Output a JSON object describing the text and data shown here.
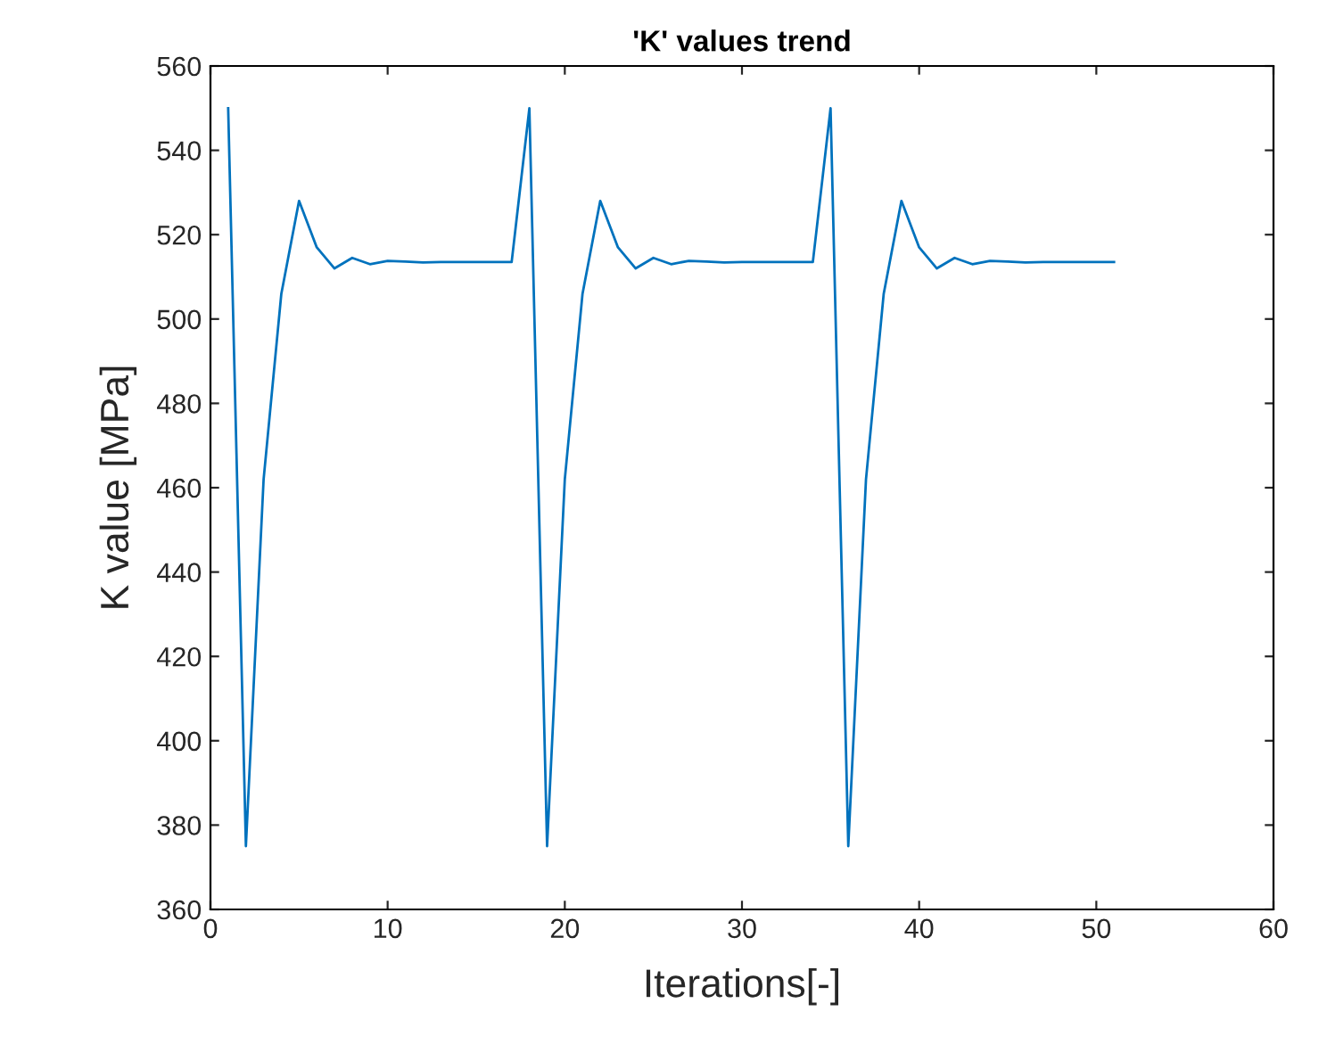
{
  "chart_data": {
    "type": "line",
    "title": "'K' values trend",
    "xlabel": "Iterations[-]",
    "ylabel": "K value [MPa]",
    "x": [
      1,
      2,
      3,
      4,
      5,
      6,
      7,
      8,
      9,
      10,
      11,
      12,
      13,
      14,
      15,
      16,
      17,
      18,
      19,
      20,
      21,
      22,
      23,
      24,
      25,
      26,
      27,
      28,
      29,
      30,
      31,
      32,
      33,
      34,
      35,
      36,
      37,
      38,
      39,
      40,
      41,
      42,
      43,
      44,
      45,
      46,
      47,
      48,
      49,
      50,
      51
    ],
    "series": [
      {
        "color": "#0072bd",
        "values": [
          550,
          375,
          462,
          506,
          528,
          517,
          512,
          514.5,
          513,
          513.8,
          513.6,
          513.4,
          513.5,
          513.5,
          513.5,
          513.5,
          513.5,
          550,
          375,
          462,
          506,
          528,
          517,
          512,
          514.5,
          513,
          513.8,
          513.6,
          513.4,
          513.5,
          513.5,
          513.5,
          513.5,
          513.5,
          550,
          375,
          462,
          506,
          528,
          517,
          512,
          514.5,
          513,
          513.8,
          513.6,
          513.4,
          513.5,
          513.5,
          513.5,
          513.5,
          513.5
        ]
      }
    ],
    "xlim": [
      0,
      60
    ],
    "xticks": [
      0,
      10,
      20,
      30,
      40,
      50,
      60
    ],
    "ylim": [
      360,
      560
    ],
    "yticks": [
      360,
      380,
      400,
      420,
      440,
      460,
      480,
      500,
      520,
      540,
      560
    ],
    "grid": false,
    "legend": false
  }
}
